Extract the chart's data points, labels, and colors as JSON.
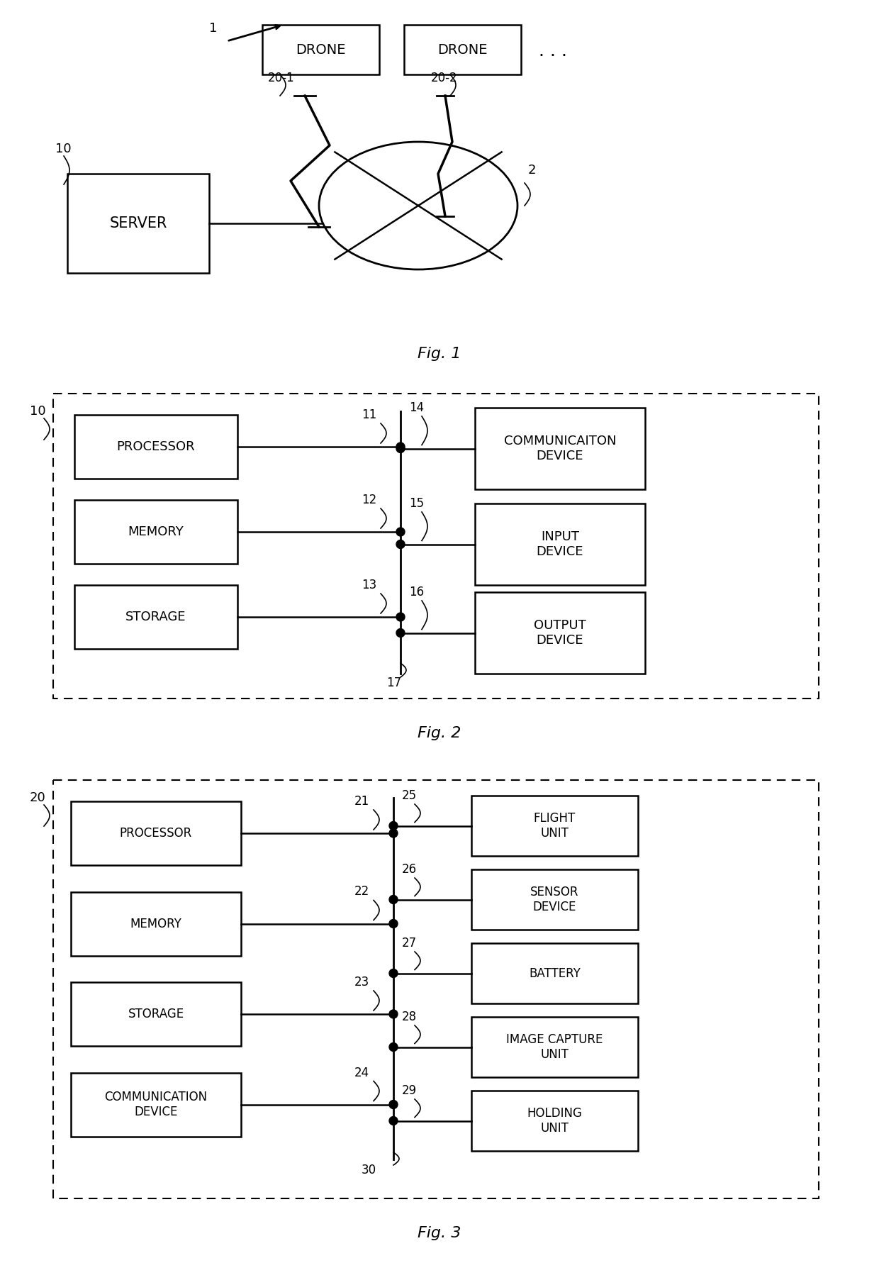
{
  "bg_color": "#ffffff",
  "fig1": {
    "title": "Fig. 1",
    "drone1": "DRONE",
    "drone2": "DRONE",
    "server": "SERVER",
    "ref1": "1",
    "ref10": "10",
    "ref20_1": "20-1",
    "ref20_2": "20-2",
    "ref2": "2",
    "dots": ". . ."
  },
  "fig2": {
    "title": "Fig. 2",
    "ref10": "10",
    "left_boxes": [
      "PROCESSOR",
      "MEMORY",
      "STORAGE"
    ],
    "right_boxes": [
      "COMMUNICAITON\nDEVICE",
      "INPUT\nDEVICE",
      "OUTPUT\nDEVICE"
    ],
    "left_refs": [
      "11",
      "12",
      "13"
    ],
    "right_refs": [
      "14",
      "15",
      "16"
    ],
    "bus_ref": "17"
  },
  "fig3": {
    "title": "Fig. 3",
    "ref20": "20",
    "left_boxes": [
      "PROCESSOR",
      "MEMORY",
      "STORAGE",
      "COMMUNICATION\nDEVICE"
    ],
    "right_boxes": [
      "FLIGHT\nUNIT",
      "SENSOR\nDEVICE",
      "BATTERY",
      "IMAGE CAPTURE\nUNIT",
      "HOLDING\nUNIT"
    ],
    "left_refs": [
      "21",
      "22",
      "23",
      "24"
    ],
    "right_refs": [
      "25",
      "26",
      "27",
      "28",
      "29"
    ],
    "bus_ref": "30"
  }
}
